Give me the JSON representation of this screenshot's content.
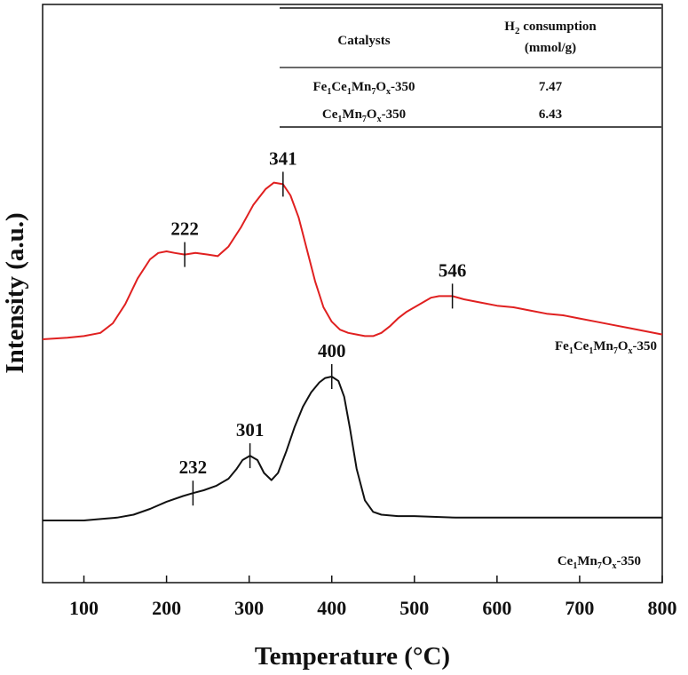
{
  "chart_data": {
    "type": "line",
    "xlabel": "Temperature (°C)",
    "ylabel": "Intensity (a.u.)",
    "xlim": [
      50,
      800
    ],
    "x_ticks": [
      "100",
      "200",
      "300",
      "400",
      "500",
      "600",
      "700",
      "800"
    ],
    "x_tick_values": [
      100,
      200,
      300,
      400,
      500,
      600,
      700,
      800
    ],
    "y_ticks_shown": false,
    "series": [
      {
        "name": "Fe1Ce1Mn7Ox-350",
        "color": "#e02020",
        "label_parts": [
          {
            "t": "Fe",
            "sub": false
          },
          {
            "t": "1",
            "sub": true
          },
          {
            "t": "Ce",
            "sub": false
          },
          {
            "t": "1",
            "sub": true
          },
          {
            "t": "Mn",
            "sub": false
          },
          {
            "t": "7",
            "sub": true
          },
          {
            "t": "O",
            "sub": false
          },
          {
            "t": "x",
            "sub": true
          },
          {
            "t": "-350",
            "sub": false
          }
        ],
        "x": [
          50,
          80,
          100,
          120,
          135,
          150,
          165,
          180,
          190,
          200,
          210,
          222,
          235,
          250,
          262,
          275,
          290,
          305,
          320,
          330,
          341,
          350,
          360,
          370,
          380,
          390,
          400,
          410,
          420,
          430,
          440,
          450,
          460,
          470,
          480,
          490,
          500,
          510,
          520,
          530,
          546,
          560,
          580,
          600,
          620,
          640,
          660,
          680,
          700,
          720,
          740,
          760,
          780,
          800
        ],
        "y": [
          0.0,
          0.01,
          0.02,
          0.04,
          0.1,
          0.22,
          0.38,
          0.5,
          0.54,
          0.55,
          0.54,
          0.53,
          0.54,
          0.53,
          0.52,
          0.58,
          0.7,
          0.84,
          0.94,
          0.98,
          0.97,
          0.9,
          0.76,
          0.56,
          0.36,
          0.2,
          0.11,
          0.06,
          0.04,
          0.03,
          0.02,
          0.02,
          0.04,
          0.08,
          0.13,
          0.17,
          0.2,
          0.23,
          0.26,
          0.27,
          0.27,
          0.25,
          0.23,
          0.21,
          0.2,
          0.18,
          0.16,
          0.15,
          0.13,
          0.11,
          0.09,
          0.07,
          0.05,
          0.03
        ],
        "peaks": [
          {
            "label": "222",
            "x": 222
          },
          {
            "label": "341",
            "x": 341
          },
          {
            "label": "546",
            "x": 546
          }
        ]
      },
      {
        "name": "Ce1Mn7Ox-350",
        "color": "#111111",
        "label_parts": [
          {
            "t": "Ce",
            "sub": false
          },
          {
            "t": "1",
            "sub": true
          },
          {
            "t": "Mn",
            "sub": false
          },
          {
            "t": "7",
            "sub": true
          },
          {
            "t": "O",
            "sub": false
          },
          {
            "t": "x",
            "sub": true
          },
          {
            "t": "-350",
            "sub": false
          }
        ],
        "x": [
          50,
          80,
          100,
          120,
          140,
          160,
          180,
          200,
          220,
          232,
          245,
          260,
          275,
          285,
          292,
          301,
          310,
          318,
          327,
          335,
          345,
          355,
          365,
          375,
          385,
          392,
          400,
          408,
          415,
          422,
          430,
          440,
          450,
          460,
          480,
          500,
          550,
          600,
          650,
          700,
          750,
          800
        ],
        "y": [
          0.0,
          0.0,
          0.0,
          0.01,
          0.02,
          0.04,
          0.08,
          0.13,
          0.17,
          0.19,
          0.21,
          0.24,
          0.29,
          0.36,
          0.42,
          0.45,
          0.42,
          0.33,
          0.28,
          0.33,
          0.48,
          0.65,
          0.79,
          0.89,
          0.96,
          0.99,
          1.0,
          0.97,
          0.86,
          0.64,
          0.36,
          0.14,
          0.06,
          0.04,
          0.03,
          0.03,
          0.02,
          0.02,
          0.02,
          0.02,
          0.02,
          0.02
        ],
        "peaks": [
          {
            "label": "232",
            "x": 232
          },
          {
            "label": "301",
            "x": 301
          },
          {
            "label": "400",
            "x": 400
          }
        ]
      }
    ]
  },
  "table": {
    "head": {
      "catalysts": "Catalysts",
      "h2_main": "H",
      "h2_sub": "2",
      "h2_rest": " consumption",
      "unit": "(mmol/g)"
    },
    "rows": [
      {
        "catalyst_parts": [
          {
            "t": "Fe",
            "sub": false
          },
          {
            "t": "1",
            "sub": true
          },
          {
            "t": "Ce",
            "sub": false
          },
          {
            "t": "1",
            "sub": true
          },
          {
            "t": "Mn",
            "sub": false
          },
          {
            "t": "7",
            "sub": true
          },
          {
            "t": "O",
            "sub": false
          },
          {
            "t": "x",
            "sub": true
          },
          {
            "t": "-350",
            "sub": false
          }
        ],
        "value": "7.47"
      },
      {
        "catalyst_parts": [
          {
            "t": "Ce",
            "sub": false
          },
          {
            "t": "1",
            "sub": true
          },
          {
            "t": "Mn",
            "sub": false
          },
          {
            "t": "7",
            "sub": true
          },
          {
            "t": "O",
            "sub": false
          },
          {
            "t": "x",
            "sub": true
          },
          {
            "t": "-350",
            "sub": false
          }
        ],
        "value": "6.43"
      }
    ]
  }
}
